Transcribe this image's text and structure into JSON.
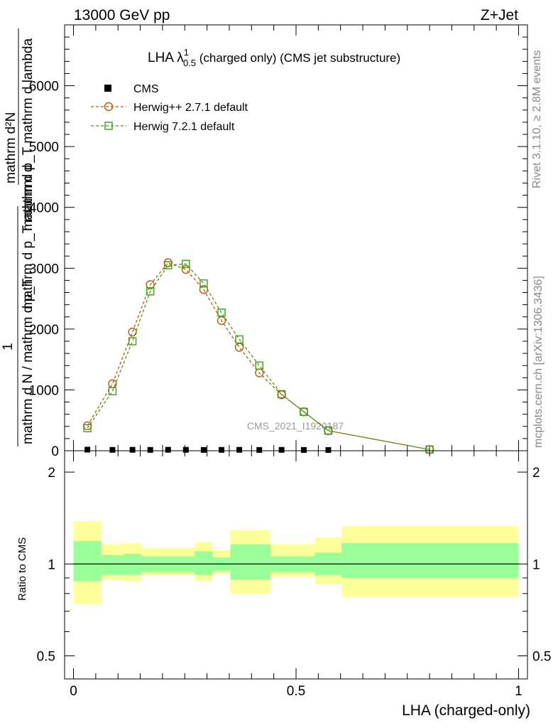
{
  "header": {
    "left": "13000 GeV pp",
    "right": "Z+Jet"
  },
  "side_labels": {
    "rivet": "Rivet 3.1.10, ≥ 2.8M events",
    "mcplots": "mcplots.cern.ch [arXiv:1306.3436]"
  },
  "main_plot": {
    "title_prefix": "LHA λ",
    "title_sup": "1",
    "title_sub": "0.5",
    "title_suffix": " (charged only) (CMS jet substructure)",
    "ylabel_num": "mathrm d²N",
    "ylabel_lines": [
      "mathrm d p_T mathrm d lambda",
      "mathrm d p_T mathrm d",
      "mathrm d N / mathrm d p_T"
    ],
    "ylabel_one": "1",
    "watermark": "CMS_2021_I1920187",
    "yticks": [
      "0",
      "1000",
      "2000",
      "3000",
      "4000",
      "5000",
      "6000"
    ]
  },
  "ratio_plot": {
    "ylabel": "Ratio to CMS",
    "yticks": [
      "0.5",
      "1",
      "2"
    ],
    "xticks": [
      "0",
      "0.5",
      "1"
    ],
    "xlabel": "LHA (charged-only)"
  },
  "colors": {
    "herwigpp": "#b35b0d",
    "herwig7": "#3f9c1a",
    "band_inner": "#99ff99",
    "band_outer": "#ffff99"
  },
  "chart_data": [
    {
      "type": "line",
      "xlim": [
        -0.02,
        1.02
      ],
      "ylim": [
        0,
        7000
      ],
      "x": [
        0.03125,
        0.0875,
        0.1325,
        0.1725,
        0.2125,
        0.2525,
        0.2925,
        0.3325,
        0.3725,
        0.4175,
        0.4675,
        0.5175,
        0.5725,
        0.8
      ],
      "series": [
        {
          "name": "CMS",
          "marker": "square",
          "values": [
            18,
            14,
            15,
            14,
            16,
            15,
            13,
            14,
            15,
            13,
            14,
            13,
            12,
            0
          ]
        },
        {
          "name": "Herwig++ 2.7.1 default",
          "marker": "circle",
          "values": [
            410,
            1100,
            1950,
            2730,
            3090,
            2980,
            2650,
            2140,
            1700,
            1280,
            920,
            640,
            330,
            20
          ]
        },
        {
          "name": "Herwig 7.2.1 default",
          "marker": "open-square",
          "values": [
            370,
            980,
            1800,
            2620,
            3050,
            3070,
            2750,
            2270,
            1830,
            1400,
            930,
            640,
            330,
            20
          ]
        }
      ],
      "legend": "top-left"
    },
    {
      "type": "area",
      "title": "Ratio to CMS",
      "xlim": [
        -0.02,
        1.02
      ],
      "ylim": [
        0.42,
        2.35
      ],
      "log_y": true,
      "bins": [
        {
          "x0": 0.0,
          "x1": 0.0625,
          "inner": [
            0.88,
            1.19
          ],
          "outer": [
            0.74,
            1.38
          ]
        },
        {
          "x0": 0.0625,
          "x1": 0.1125,
          "inner": [
            0.92,
            1.07
          ],
          "outer": [
            0.89,
            1.16
          ]
        },
        {
          "x0": 0.1125,
          "x1": 0.1525,
          "inner": [
            0.92,
            1.08
          ],
          "outer": [
            0.88,
            1.17
          ]
        },
        {
          "x0": 0.1525,
          "x1": 0.2725,
          "inner": [
            0.94,
            1.06
          ],
          "outer": [
            0.92,
            1.13
          ]
        },
        {
          "x0": 0.2725,
          "x1": 0.3125,
          "inner": [
            0.92,
            1.1
          ],
          "outer": [
            0.88,
            1.18
          ]
        },
        {
          "x0": 0.3125,
          "x1": 0.3525,
          "inner": [
            0.95,
            1.05
          ],
          "outer": [
            0.93,
            1.11
          ]
        },
        {
          "x0": 0.3525,
          "x1": 0.4425,
          "inner": [
            0.89,
            1.16
          ],
          "outer": [
            0.8,
            1.29
          ]
        },
        {
          "x0": 0.4425,
          "x1": 0.5425,
          "inner": [
            0.94,
            1.06
          ],
          "outer": [
            0.91,
            1.16
          ]
        },
        {
          "x0": 0.5425,
          "x1": 0.6025,
          "inner": [
            0.92,
            1.09
          ],
          "outer": [
            0.86,
            1.22
          ]
        },
        {
          "x0": 0.6025,
          "x1": 1.0,
          "inner": [
            0.9,
            1.17
          ],
          "outer": [
            0.78,
            1.33
          ]
        }
      ],
      "reference": 1
    }
  ]
}
